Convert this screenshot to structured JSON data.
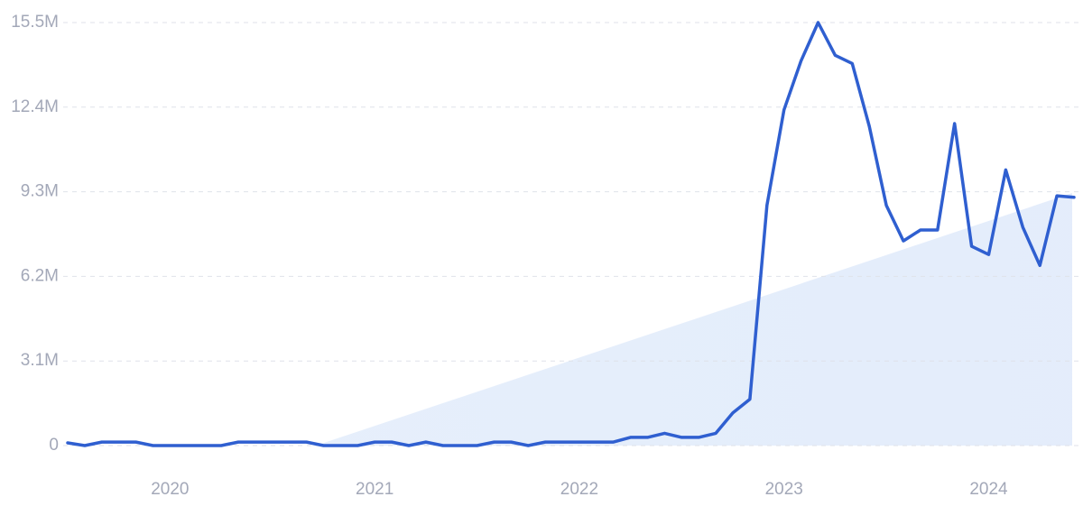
{
  "chart_data": {
    "type": "line",
    "categories": [
      null,
      null,
      null,
      null,
      null,
      null,
      "2020",
      null,
      null,
      null,
      null,
      null,
      null,
      null,
      null,
      null,
      null,
      null,
      "2021",
      null,
      null,
      null,
      null,
      null,
      null,
      null,
      null,
      null,
      null,
      null,
      "2022",
      null,
      null,
      null,
      null,
      null,
      null,
      null,
      null,
      null,
      null,
      null,
      "2023",
      null,
      null,
      null,
      null,
      null,
      null,
      null,
      null,
      null,
      null,
      null,
      "2024",
      null,
      null,
      null,
      null,
      null
    ],
    "values": [
      0.1,
      0,
      0.13,
      0.13,
      0.13,
      0,
      0,
      0,
      0,
      0,
      0.13,
      0.13,
      0.13,
      0.13,
      0.13,
      0,
      0,
      0,
      0.13,
      0.13,
      0,
      0.13,
      0,
      0,
      0,
      0.13,
      0.13,
      0,
      0.13,
      0.13,
      0.13,
      0.13,
      0.13,
      0.3,
      0.3,
      0.45,
      0.3,
      0.3,
      0.45,
      1.2,
      1.7,
      8.8,
      12.3,
      14.1,
      15.5,
      14.3,
      14.0,
      11.7,
      8.8,
      7.5,
      7.9,
      7.9,
      11.8,
      7.3,
      7.0,
      10.1,
      8.0,
      6.6,
      9.15,
      9.1
    ],
    "color": "#2f5fd0",
    "ylim": [
      0,
      15.5
    ],
    "yticks": [
      0,
      {
        "value": 3.1,
        "label": "3.1M"
      },
      {
        "value": 6.2,
        "label": "6.2M"
      },
      {
        "value": 9.3,
        "label": "9.3M"
      },
      {
        "value": 12.4,
        "label": "12.4M"
      },
      {
        "value": 15.5,
        "label": "15.5M"
      }
    ],
    "grid": true
  }
}
